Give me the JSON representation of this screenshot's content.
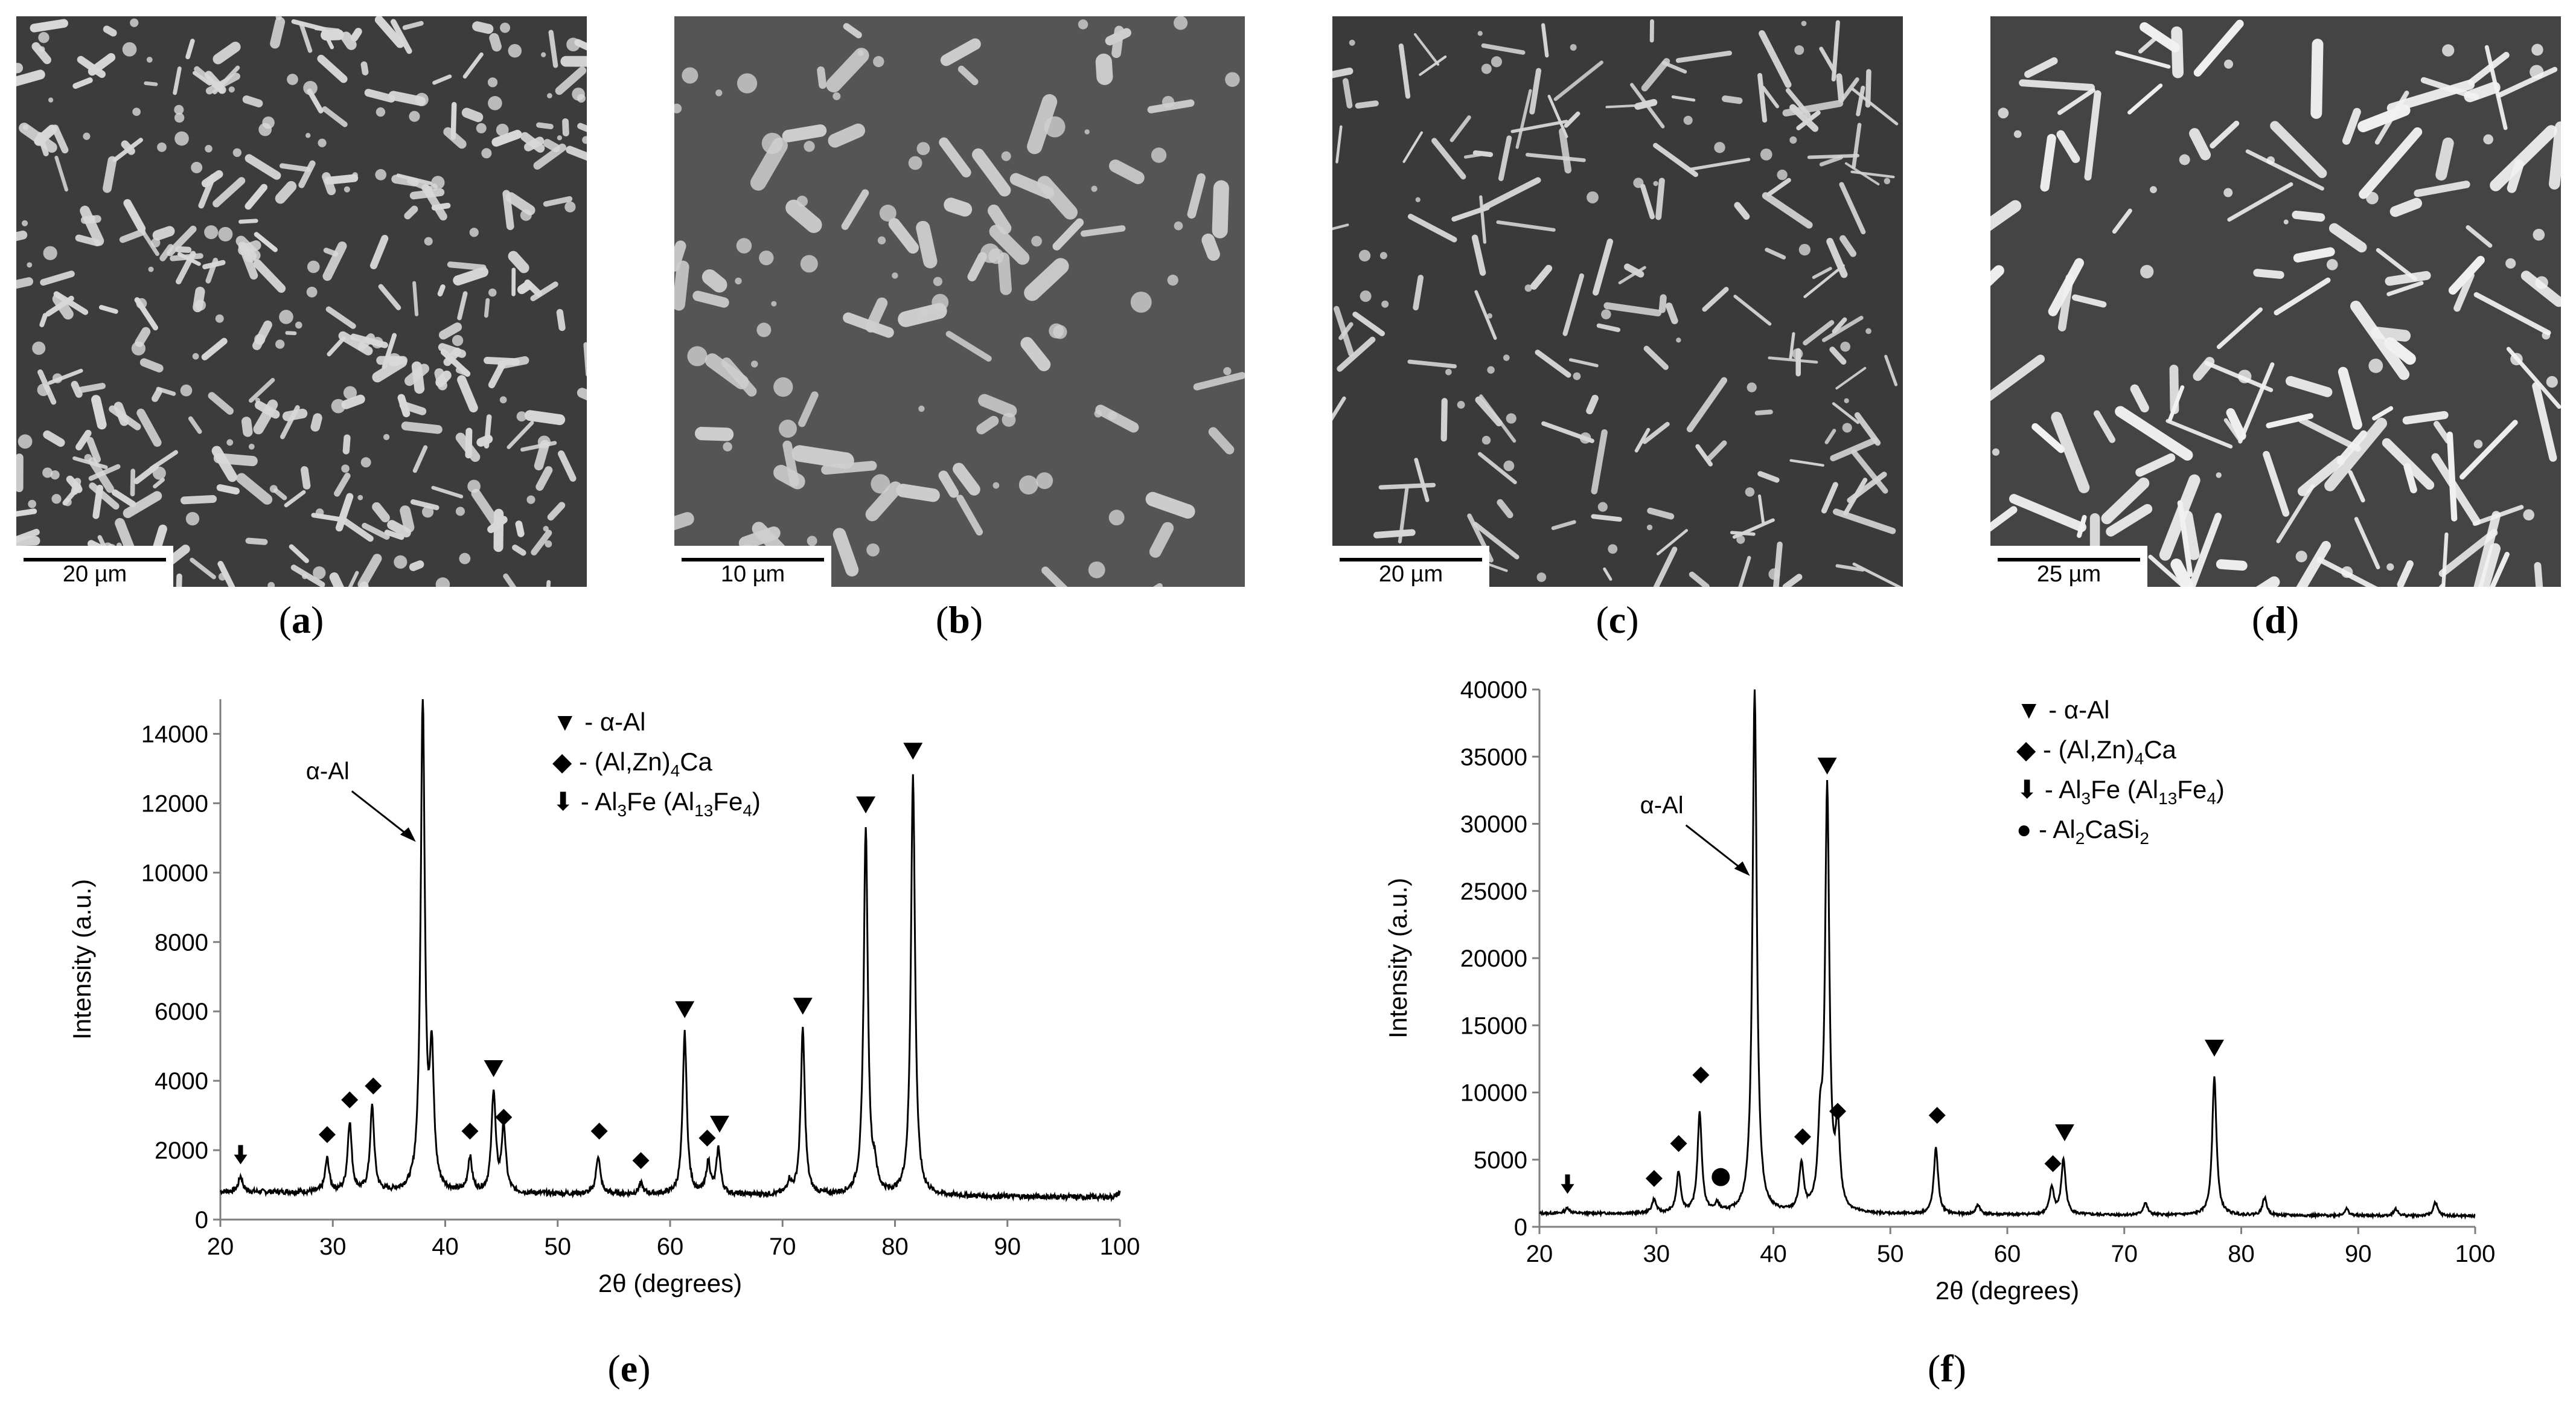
{
  "panels": [
    {
      "id": "a",
      "letter": "a",
      "scale_label": "20 µm"
    },
    {
      "id": "b",
      "letter": "b",
      "scale_label": "10 µm"
    },
    {
      "id": "c",
      "letter": "c",
      "scale_label": "20 µm"
    },
    {
      "id": "d",
      "letter": "d",
      "scale_label": "25 µm"
    }
  ],
  "chart_data": [
    {
      "id": "e",
      "letter": "e",
      "type": "line",
      "xlabel": "2θ (degrees)",
      "ylabel": "Intensity (a.u.)",
      "xlim": [
        20,
        100
      ],
      "ylim": [
        0,
        15000
      ],
      "xticks": [
        20,
        30,
        40,
        50,
        60,
        70,
        80,
        90,
        100
      ],
      "yticks": [
        0,
        2000,
        4000,
        6000,
        8000,
        10000,
        12000,
        14000
      ],
      "baseline": 800,
      "peaks": [
        {
          "x": 21.8,
          "y": 1250
        },
        {
          "x": 29.5,
          "y": 1750
        },
        {
          "x": 31.5,
          "y": 2800
        },
        {
          "x": 33.5,
          "y": 3250
        },
        {
          "x": 38.0,
          "y": 15000
        },
        {
          "x": 38.8,
          "y": 4500
        },
        {
          "x": 42.2,
          "y": 1800
        },
        {
          "x": 44.3,
          "y": 3700
        },
        {
          "x": 45.2,
          "y": 2700
        },
        {
          "x": 53.6,
          "y": 1900
        },
        {
          "x": 57.4,
          "y": 1100
        },
        {
          "x": 61.3,
          "y": 5450
        },
        {
          "x": 63.4,
          "y": 1700
        },
        {
          "x": 64.3,
          "y": 2100
        },
        {
          "x": 70.6,
          "y": 1150
        },
        {
          "x": 71.8,
          "y": 5550
        },
        {
          "x": 77.4,
          "y": 11400
        },
        {
          "x": 78.2,
          "y": 1400
        },
        {
          "x": 81.6,
          "y": 12900
        },
        {
          "x": 100,
          "y": 950
        }
      ],
      "annotation": {
        "text": "α-Al",
        "x": 37.6,
        "y": 12000
      },
      "legend": [
        {
          "marker": "triangle",
          "label": "▼ - α-Al"
        },
        {
          "marker": "diamond",
          "label": "◆ - (Al,Zn)4Ca"
        },
        {
          "marker": "arrow",
          "label": "⬇ - Al3Fe (Al13Fe4)"
        }
      ],
      "markers": [
        {
          "type": "arrow",
          "x": 21.8,
          "y": 1800
        },
        {
          "type": "diamond",
          "x": 29.5,
          "y": 2450
        },
        {
          "type": "diamond",
          "x": 31.5,
          "y": 3450
        },
        {
          "type": "diamond",
          "x": 33.6,
          "y": 3850
        },
        {
          "type": "diamond",
          "x": 42.2,
          "y": 2550
        },
        {
          "type": "triangle",
          "x": 44.3,
          "y": 4350
        },
        {
          "type": "diamond",
          "x": 45.2,
          "y": 2950
        },
        {
          "type": "diamond",
          "x": 53.7,
          "y": 2550
        },
        {
          "type": "diamond",
          "x": 57.4,
          "y": 1700
        },
        {
          "type": "triangle",
          "x": 61.3,
          "y": 6050
        },
        {
          "type": "diamond",
          "x": 63.3,
          "y": 2350
        },
        {
          "type": "triangle",
          "x": 64.4,
          "y": 2750
        },
        {
          "type": "triangle",
          "x": 71.8,
          "y": 6150
        },
        {
          "type": "triangle",
          "x": 77.4,
          "y": 11950
        },
        {
          "type": "triangle",
          "x": 81.6,
          "y": 13500
        }
      ]
    },
    {
      "id": "f",
      "letter": "f",
      "type": "line",
      "xlabel": "2θ (degrees)",
      "ylabel": "Intensity (a.u.)",
      "xlim": [
        20,
        100
      ],
      "ylim": [
        0,
        40000
      ],
      "xticks": [
        20,
        30,
        40,
        50,
        60,
        70,
        80,
        90,
        100
      ],
      "yticks": [
        0,
        5000,
        10000,
        15000,
        20000,
        25000,
        30000,
        35000,
        40000
      ],
      "baseline": 1000,
      "peaks": [
        {
          "x": 22.4,
          "y": 1400
        },
        {
          "x": 29.8,
          "y": 2000
        },
        {
          "x": 31.9,
          "y": 4000
        },
        {
          "x": 33.7,
          "y": 8400
        },
        {
          "x": 35.2,
          "y": 1600
        },
        {
          "x": 38.4,
          "y": 40000
        },
        {
          "x": 42.4,
          "y": 4500
        },
        {
          "x": 44.0,
          "y": 6200
        },
        {
          "x": 44.6,
          "y": 32200
        },
        {
          "x": 45.5,
          "y": 7000
        },
        {
          "x": 53.9,
          "y": 5900
        },
        {
          "x": 57.5,
          "y": 1700
        },
        {
          "x": 63.8,
          "y": 3000
        },
        {
          "x": 64.8,
          "y": 5100
        },
        {
          "x": 71.8,
          "y": 1900
        },
        {
          "x": 77.7,
          "y": 11300
        },
        {
          "x": 82.0,
          "y": 2300
        },
        {
          "x": 89.0,
          "y": 1500
        },
        {
          "x": 93.2,
          "y": 1500
        },
        {
          "x": 96.6,
          "y": 2000
        }
      ],
      "annotation": {
        "text": "α-Al",
        "x": 38.2,
        "y": 29000
      },
      "legend": [
        {
          "marker": "triangle",
          "label": "▼ - α-Al"
        },
        {
          "marker": "diamond",
          "label": "◆ - (Al,Zn)4Ca"
        },
        {
          "marker": "arrow",
          "label": "⬇ - Al3Fe (Al13Fe4)"
        },
        {
          "marker": "circle",
          "label": "● - Al2CaSi2"
        }
      ],
      "markers": [
        {
          "type": "arrow",
          "x": 22.4,
          "y": 3000
        },
        {
          "type": "diamond",
          "x": 29.8,
          "y": 3600
        },
        {
          "type": "diamond",
          "x": 31.9,
          "y": 6200
        },
        {
          "type": "diamond",
          "x": 33.8,
          "y": 11300
        },
        {
          "type": "circle",
          "x": 35.5,
          "y": 3700
        },
        {
          "type": "diamond",
          "x": 42.5,
          "y": 6700
        },
        {
          "type": "triangle",
          "x": 44.6,
          "y": 34300
        },
        {
          "type": "diamond",
          "x": 45.5,
          "y": 8600
        },
        {
          "type": "diamond",
          "x": 54.0,
          "y": 8300
        },
        {
          "type": "diamond",
          "x": 63.9,
          "y": 4700
        },
        {
          "type": "triangle",
          "x": 64.9,
          "y": 7000
        },
        {
          "type": "triangle",
          "x": 77.7,
          "y": 13300
        }
      ]
    }
  ]
}
